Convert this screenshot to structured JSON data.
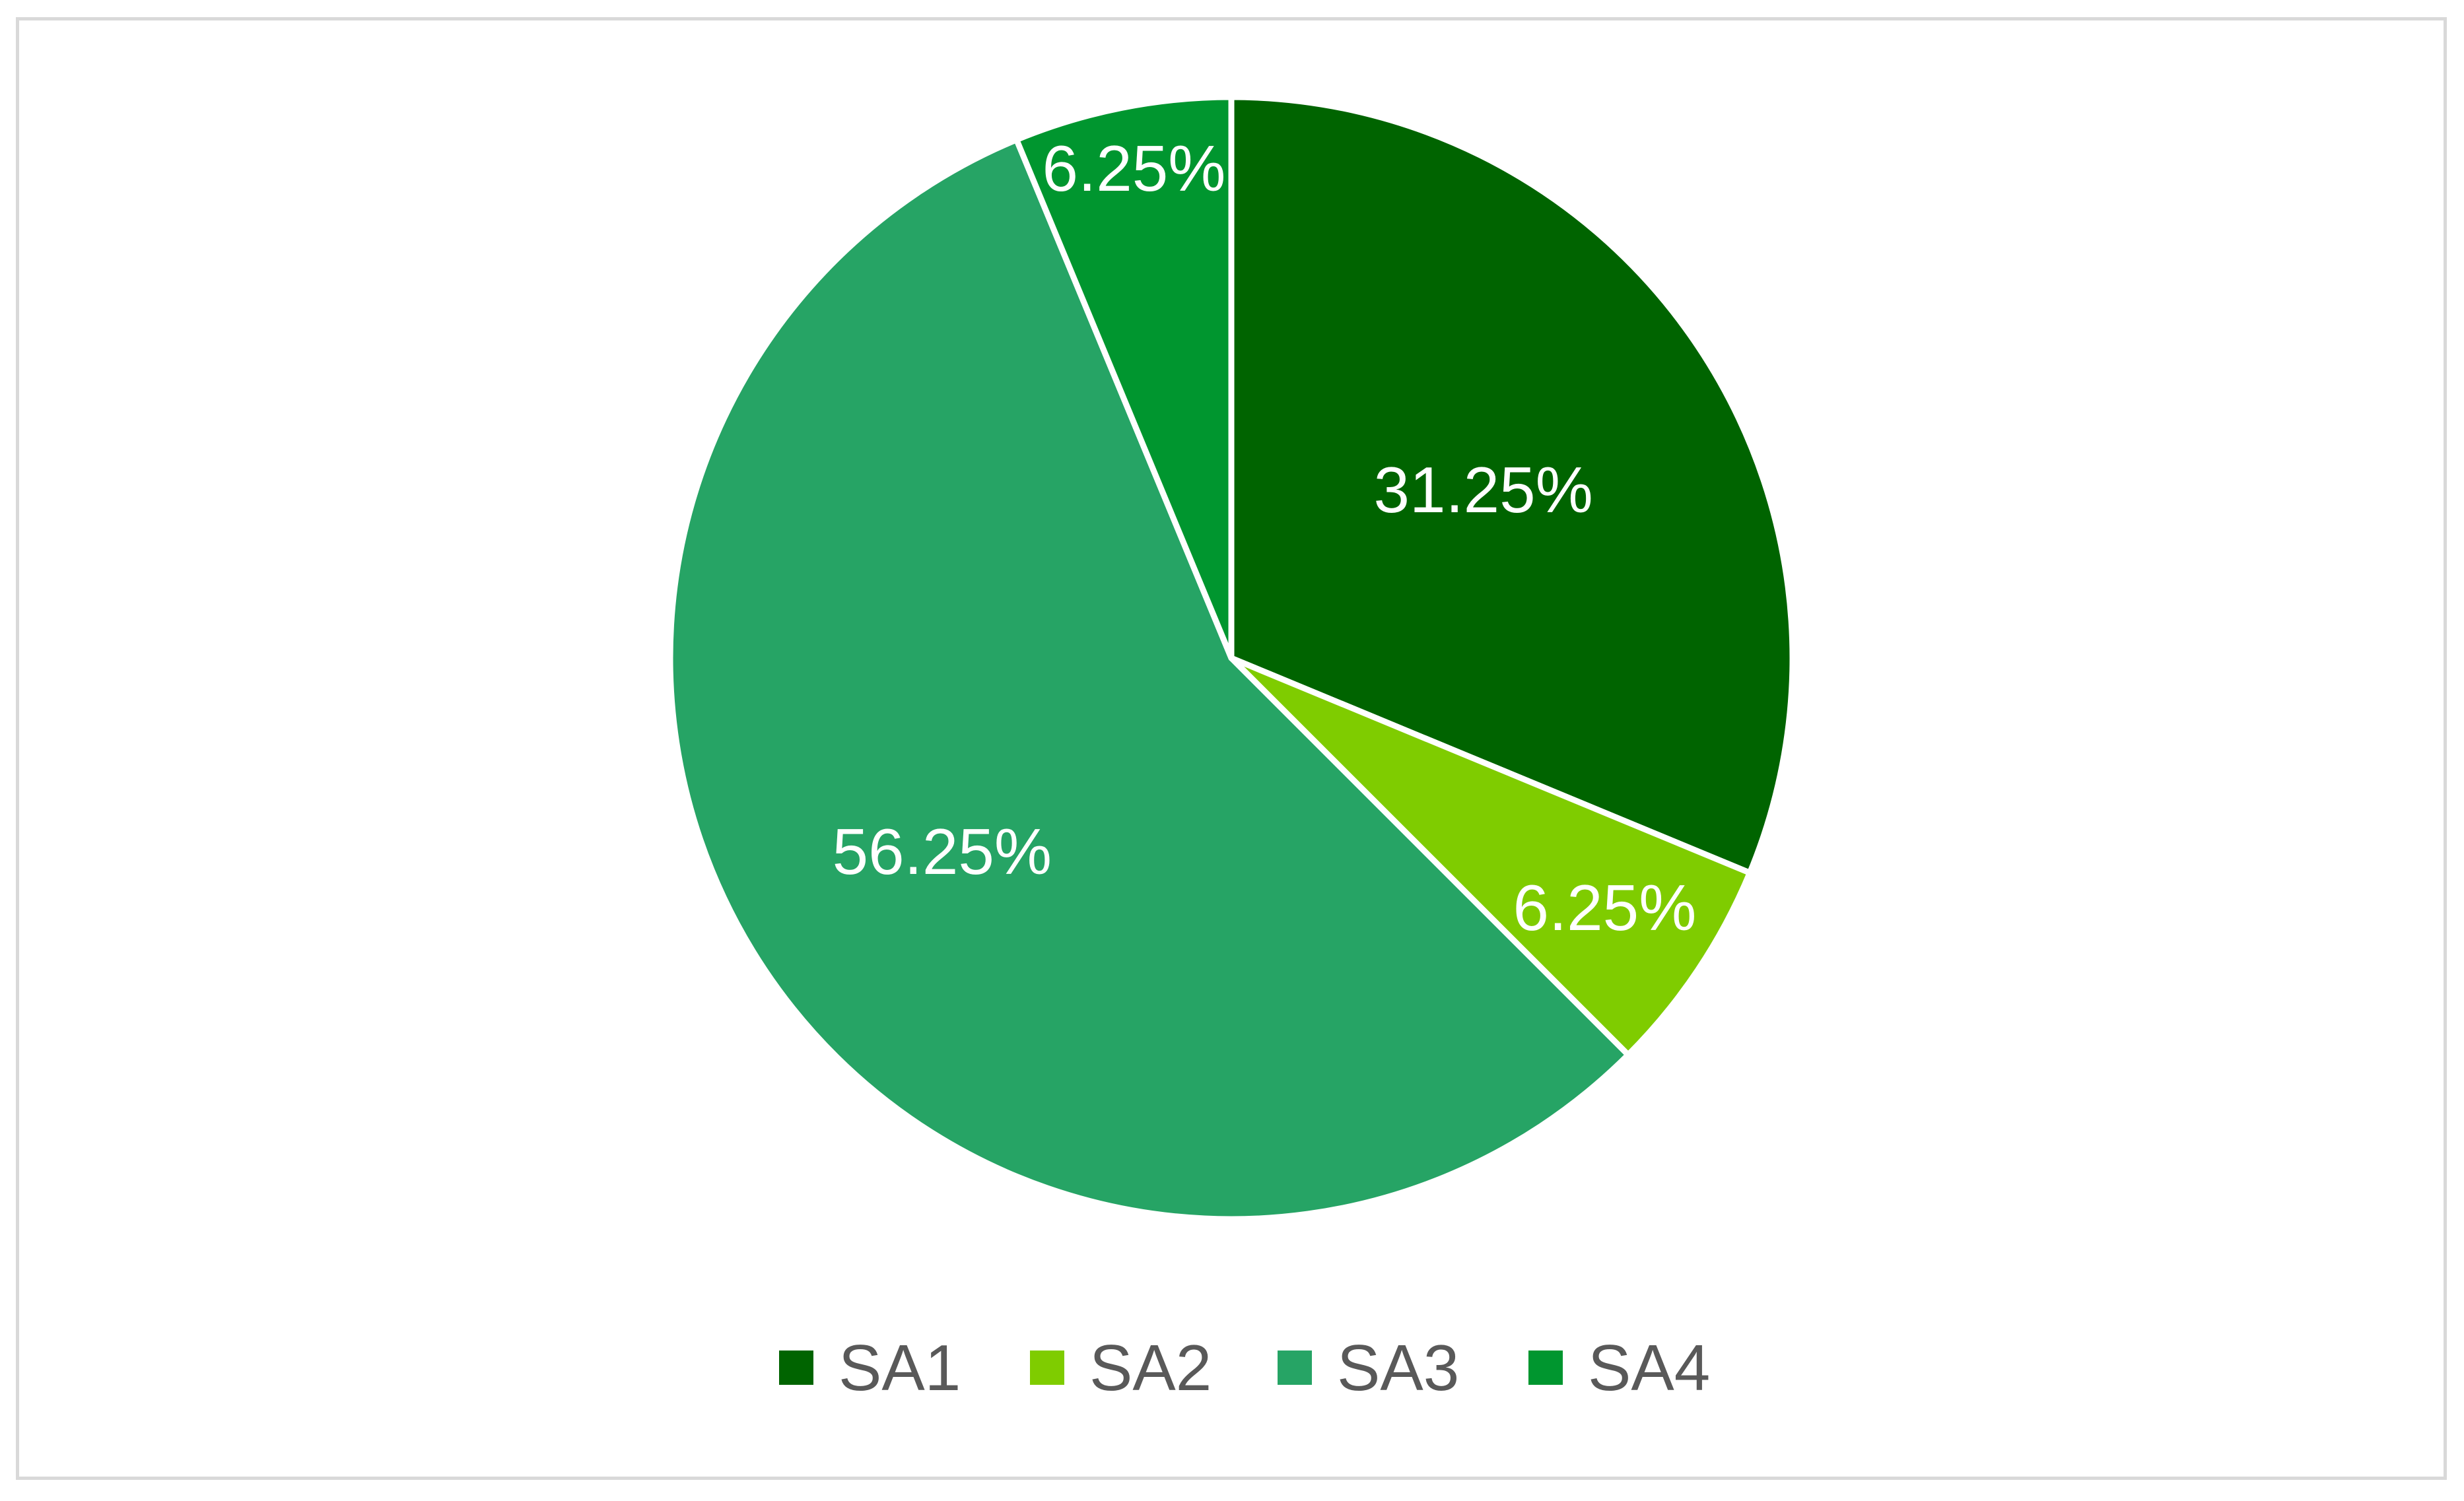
{
  "chart_data": {
    "type": "pie",
    "categories": [
      "SA1",
      "SA2",
      "SA3",
      "SA4"
    ],
    "values": [
      31.25,
      6.25,
      56.25,
      6.25
    ],
    "labels": [
      "31.25%",
      "6.25%",
      "56.25%",
      "6.25%"
    ],
    "colors": [
      "#006400",
      "#7fcc00",
      "#26a465",
      "#00962f"
    ],
    "legend": {
      "position": "bottom",
      "items": [
        "SA1",
        "SA2",
        "SA3",
        "SA4"
      ]
    }
  }
}
